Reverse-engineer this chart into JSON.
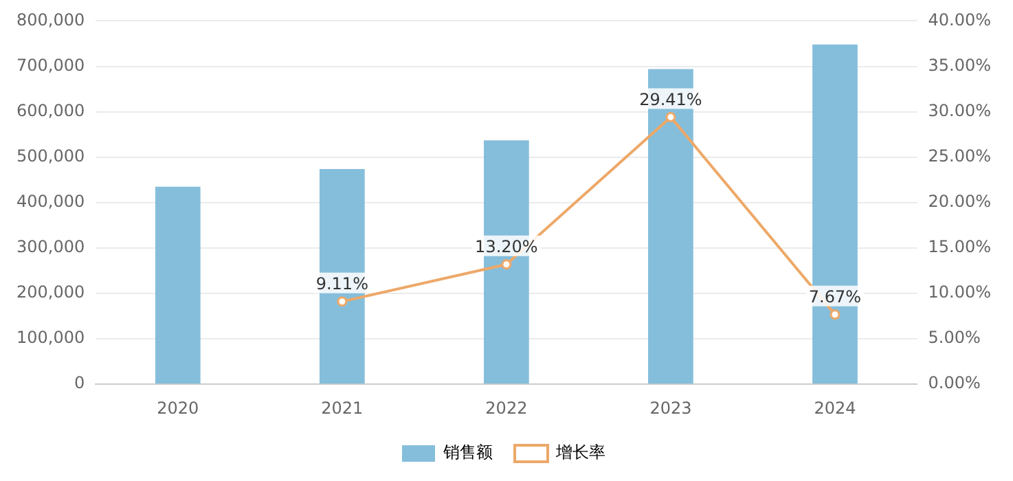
{
  "chart_data": {
    "type": "bar",
    "categories": [
      "2020",
      "2021",
      "2022",
      "2023",
      "2024"
    ],
    "series": [
      {
        "name": "销售额",
        "color": "#85bedb",
        "values": [
          435000,
          474000,
          537000,
          694000,
          748000
        ]
      },
      {
        "name": "增长率",
        "type": "line",
        "axis": "y2",
        "color": "#eda868",
        "values": [
          null,
          9.11,
          13.2,
          29.41,
          7.67
        ],
        "value_labels": [
          null,
          "9.11%",
          "13.20%",
          "29.41%",
          "7.67%"
        ],
        "marker": "circle",
        "line_style": "solid"
      }
    ],
    "ylim": [
      0,
      800000
    ],
    "yticks": [
      0,
      {
        "value": 100000,
        "label": "100,000"
      },
      {
        "value": 200000,
        "label": "200,000"
      },
      {
        "value": 300000,
        "label": "300,000"
      },
      {
        "value": 400000,
        "label": "400,000"
      },
      {
        "value": 500000,
        "label": "500,000"
      },
      {
        "value": 600000,
        "label": "600,000"
      },
      {
        "value": 700000,
        "label": "700,000"
      },
      {
        "value": 800000,
        "label": "800,000"
      }
    ],
    "y2lim": [
      0,
      40
    ],
    "y2ticks": [
      {
        "value": 0,
        "label": "0.00%"
      },
      {
        "value": 5,
        "label": "5.00%"
      },
      {
        "value": 10,
        "label": "10.00%"
      },
      {
        "value": 15,
        "label": "15.00%"
      },
      {
        "value": 20,
        "label": "20.00%"
      },
      {
        "value": 25,
        "label": "25.00%"
      },
      {
        "value": 30,
        "label": "30.00%"
      },
      {
        "value": 35,
        "label": "35.00%"
      },
      {
        "value": 40,
        "label": "40.00%"
      }
    ],
    "grid": "y",
    "legend": "bottom"
  }
}
